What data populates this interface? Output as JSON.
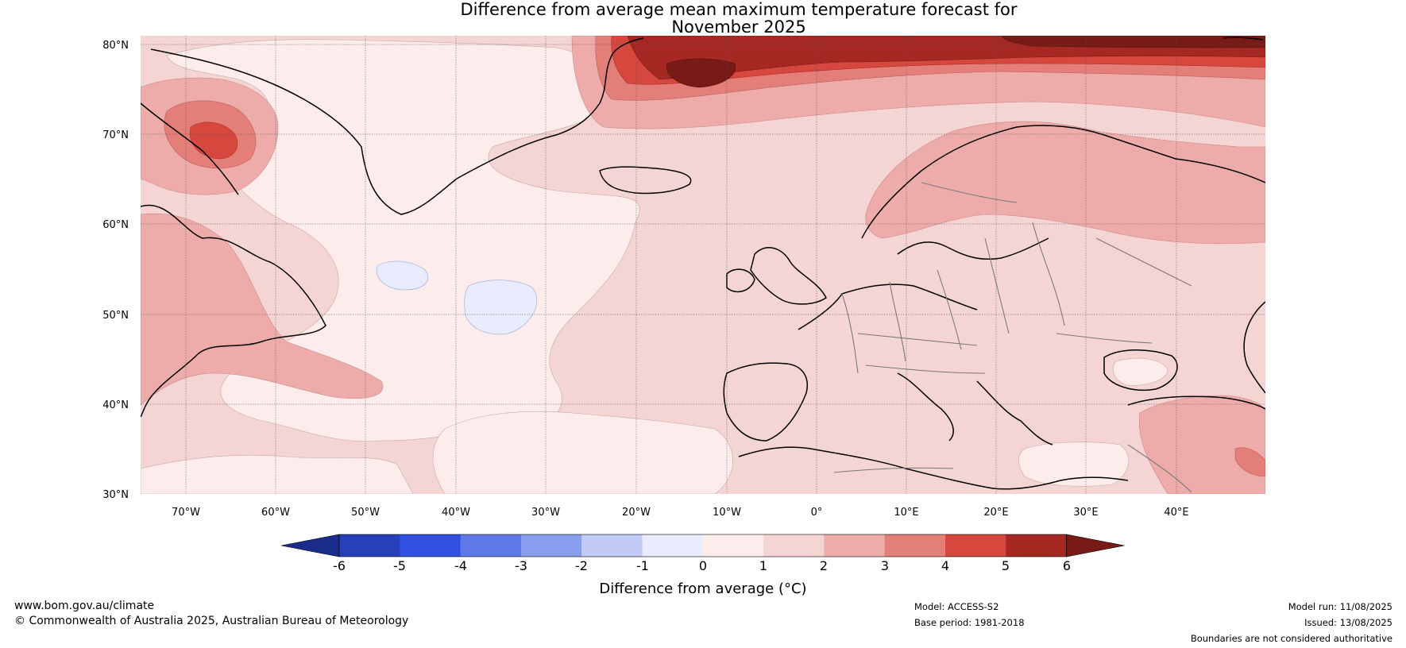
{
  "title": {
    "line1": "Difference from average mean maximum temperature forecast for",
    "line2": "November 2025"
  },
  "map": {
    "lat_labels": [
      "80°N",
      "70°N",
      "60°N",
      "50°N",
      "40°N",
      "30°N"
    ],
    "lon_labels": [
      "70°W",
      "60°W",
      "50°W",
      "40°W",
      "30°W",
      "20°W",
      "10°W",
      "0°",
      "10°E",
      "20°E",
      "30°E",
      "40°E"
    ]
  },
  "colorbar": {
    "ticks": [
      "-6",
      "-5",
      "-4",
      "-3",
      "-2",
      "-1",
      "0",
      "1",
      "2",
      "3",
      "4",
      "5",
      "6"
    ],
    "colors": [
      "#1a2c8c",
      "#2540b8",
      "#2f50e0",
      "#5e78e8",
      "#8a9eef",
      "#c2cbf5",
      "#e8ecfc",
      "#fceceb",
      "#f5d5d4",
      "#edacaa",
      "#e47e79",
      "#d6473e",
      "#a62823",
      "#781a16"
    ],
    "label": "Difference from average (°C)"
  },
  "footer": {
    "website": "www.bom.gov.au/climate",
    "copyright": "© Commonwealth of Australia 2025, Australian Bureau of Meteorology",
    "model": "Model: ACCESS-S2",
    "base_period": "Base period: 1981-2018",
    "model_run": "Model run: 11/08/2025",
    "issued": "Issued: 13/08/2025",
    "disclaimer": "Boundaries are not considered authoritative"
  }
}
